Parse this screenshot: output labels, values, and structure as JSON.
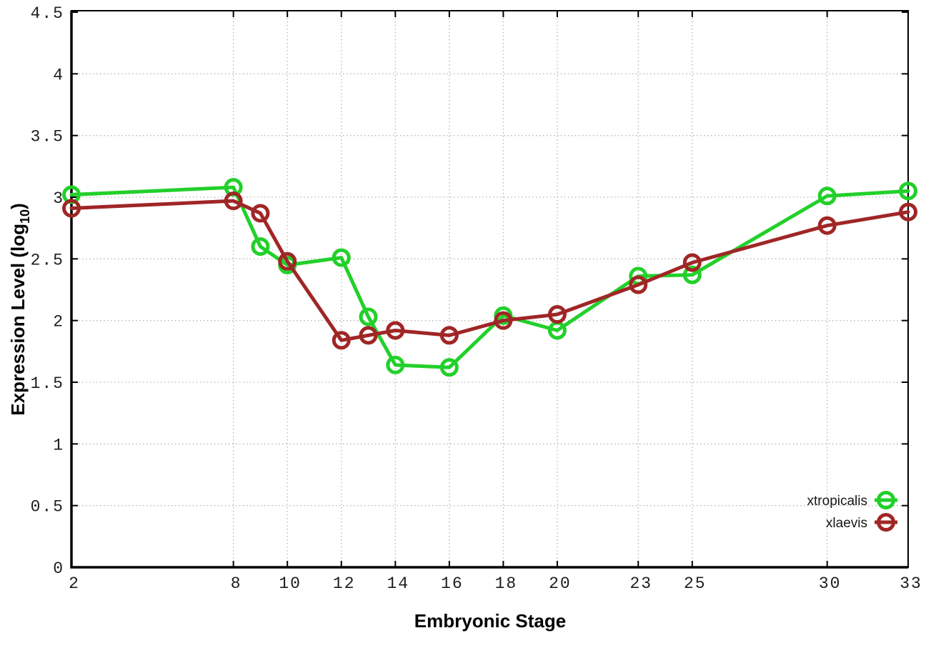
{
  "chart_data": {
    "type": "line",
    "title": "",
    "xlabel": "Embryonic Stage",
    "ylabel": {
      "prefix": "Expression Level (log",
      "sub": "10",
      "suffix": ")"
    },
    "xlim": [
      2,
      33
    ],
    "ylim": [
      0,
      4.5
    ],
    "x_ticks": [
      2,
      8,
      10,
      12,
      14,
      16,
      18,
      20,
      23,
      25,
      30,
      33
    ],
    "y_ticks": [
      0,
      0.5,
      1,
      1.5,
      2,
      2.5,
      3,
      3.5,
      4,
      4.5
    ],
    "grid": "dotted-at-major-ticks",
    "legend_position": "inside-bottom-right",
    "x": [
      2,
      8,
      9,
      10,
      12,
      13,
      14,
      16,
      18,
      20,
      23,
      25,
      30,
      33
    ],
    "series": [
      {
        "name": "xtropicalis",
        "color": "#22d02a",
        "marker": "open-circle",
        "values": [
          3.02,
          3.08,
          2.6,
          2.45,
          2.51,
          2.03,
          1.64,
          1.62,
          2.04,
          1.92,
          2.36,
          2.37,
          3.01,
          3.05
        ]
      },
      {
        "name": "xlaevis",
        "color": "#a02626",
        "marker": "open-circle",
        "values": [
          2.91,
          2.97,
          2.87,
          2.48,
          1.84,
          1.88,
          1.92,
          1.88,
          2.0,
          2.05,
          2.29,
          2.47,
          2.77,
          2.88
        ]
      }
    ],
    "colors": {
      "background": "#ffffff",
      "grid": "#b5b5b5",
      "axis": "#000000"
    }
  }
}
